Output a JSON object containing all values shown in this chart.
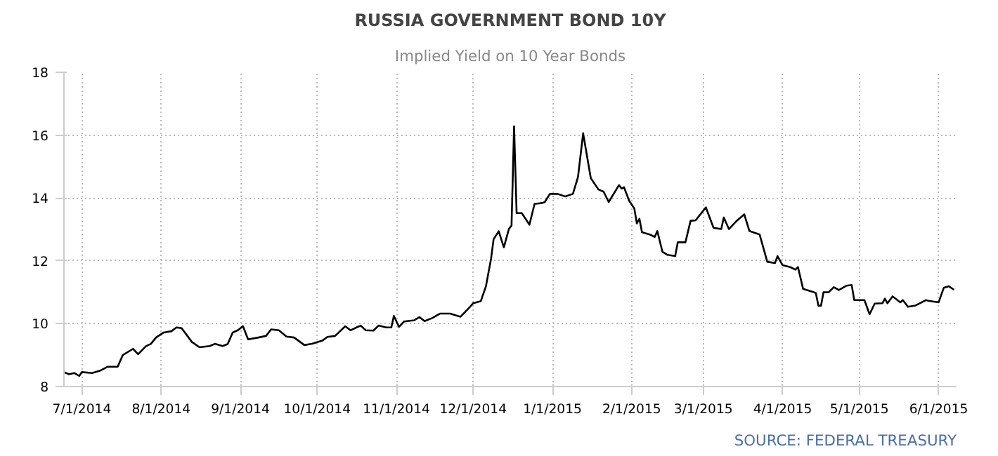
{
  "chart_data": {
    "type": "line",
    "title": "RUSSIA GOVERNMENT BOND 10Y",
    "subtitle": "Implied Yield on 10 Year Bonds",
    "annotations": [
      "SOURCE: FEDERAL TREASURY"
    ],
    "x": [
      "2014-06-24",
      "2014-06-26",
      "2014-06-28",
      "2014-06-30",
      "2014-07-01",
      "2014-07-05",
      "2014-07-08",
      "2014-07-11",
      "2014-07-15",
      "2014-07-17",
      "2014-07-21",
      "2014-07-23",
      "2014-07-26",
      "2014-07-28",
      "2014-07-30",
      "2014-08-02",
      "2014-08-05",
      "2014-08-07",
      "2014-08-09",
      "2014-08-13",
      "2014-08-16",
      "2014-08-20",
      "2014-08-22",
      "2014-08-25",
      "2014-08-27",
      "2014-08-29",
      "2014-08-31",
      "2014-09-02",
      "2014-09-04",
      "2014-09-08",
      "2014-09-11",
      "2014-09-13",
      "2014-09-16",
      "2014-09-19",
      "2014-09-22",
      "2014-09-26",
      "2014-09-29",
      "2014-10-03",
      "2014-10-05",
      "2014-10-08",
      "2014-10-12",
      "2014-10-14",
      "2014-10-18",
      "2014-10-20",
      "2014-10-23",
      "2014-10-25",
      "2014-10-28",
      "2014-10-30",
      "2014-10-31",
      "2014-11-02",
      "2014-11-04",
      "2014-11-08",
      "2014-11-10",
      "2014-11-12",
      "2014-11-15",
      "2014-11-18",
      "2014-11-22",
      "2014-11-26",
      "2014-11-29",
      "2014-12-01",
      "2014-12-04",
      "2014-12-06",
      "2014-12-08",
      "2014-12-09",
      "2014-12-11",
      "2014-12-13",
      "2014-12-15",
      "2014-12-16",
      "2014-12-17",
      "2014-12-18",
      "2014-12-20",
      "2014-12-23",
      "2014-12-25",
      "2014-12-28",
      "2014-12-29",
      "2014-12-31",
      "2015-01-03",
      "2015-01-06",
      "2015-01-09",
      "2015-01-11",
      "2015-01-13",
      "2015-01-16",
      "2015-01-19",
      "2015-01-21",
      "2015-01-23",
      "2015-01-27",
      "2015-01-28",
      "2015-01-29",
      "2015-01-31",
      "2015-02-02",
      "2015-02-03",
      "2015-02-04",
      "2015-02-05",
      "2015-02-08",
      "2015-02-10",
      "2015-02-11",
      "2015-02-13",
      "2015-02-15",
      "2015-02-18",
      "2015-02-19",
      "2015-02-22",
      "2015-02-24",
      "2015-02-26",
      "2015-03-02",
      "2015-03-03",
      "2015-03-05",
      "2015-03-08",
      "2015-03-09",
      "2015-03-11",
      "2015-03-14",
      "2015-03-17",
      "2015-03-19",
      "2015-03-23",
      "2015-03-26",
      "2015-03-29",
      "2015-03-30",
      "2015-04-01",
      "2015-04-04",
      "2015-04-06",
      "2015-04-07",
      "2015-04-09",
      "2015-04-13",
      "2015-04-14",
      "2015-04-15",
      "2015-04-16",
      "2015-04-17",
      "2015-04-19",
      "2015-04-21",
      "2015-04-23",
      "2015-04-26",
      "2015-04-28",
      "2015-04-29",
      "2015-05-03",
      "2015-05-05",
      "2015-05-07",
      "2015-05-10",
      "2015-05-11",
      "2015-05-12",
      "2015-05-14",
      "2015-05-17",
      "2015-05-18",
      "2015-05-20",
      "2015-05-23",
      "2015-05-27",
      "2015-05-28",
      "2015-06-01",
      "2015-06-03",
      "2015-06-05",
      "2015-06-07"
    ],
    "series": [
      {
        "color": "#000000",
        "values": [
          8.46,
          8.39,
          8.43,
          8.34,
          8.46,
          8.43,
          8.5,
          8.63,
          8.63,
          9.0,
          9.2,
          9.03,
          9.28,
          9.36,
          9.56,
          9.72,
          9.76,
          9.88,
          9.86,
          9.42,
          9.25,
          9.29,
          9.36,
          9.29,
          9.35,
          9.72,
          9.79,
          9.92,
          9.5,
          9.56,
          9.61,
          9.82,
          9.79,
          9.59,
          9.56,
          9.32,
          9.36,
          9.46,
          9.58,
          9.61,
          9.92,
          9.79,
          9.94,
          9.79,
          9.78,
          9.94,
          9.88,
          9.88,
          10.25,
          9.9,
          10.07,
          10.11,
          10.21,
          10.08,
          10.18,
          10.32,
          10.32,
          10.22,
          10.47,
          10.65,
          10.72,
          11.19,
          12.07,
          12.69,
          12.94,
          12.43,
          13.02,
          13.12,
          16.28,
          13.52,
          13.52,
          13.15,
          13.81,
          13.84,
          13.87,
          14.13,
          14.13,
          14.05,
          14.13,
          14.67,
          16.06,
          14.63,
          14.27,
          14.2,
          13.87,
          14.41,
          14.3,
          14.34,
          13.91,
          13.67,
          13.19,
          13.34,
          12.91,
          12.84,
          12.76,
          12.95,
          12.29,
          12.19,
          12.15,
          12.59,
          12.59,
          13.27,
          13.29,
          13.7,
          13.48,
          13.05,
          13.01,
          13.38,
          13.01,
          13.27,
          13.48,
          12.95,
          12.84,
          11.97,
          11.93,
          12.15,
          11.86,
          11.8,
          11.72,
          11.8,
          11.11,
          11.01,
          10.97,
          10.57,
          10.57,
          11.0,
          11.0,
          11.16,
          11.07,
          11.21,
          11.23,
          10.75,
          10.75,
          10.3,
          10.64,
          10.65,
          10.8,
          10.65,
          10.87,
          10.68,
          10.75,
          10.54,
          10.58,
          10.75,
          10.73,
          10.68,
          11.14,
          11.19,
          11.08
        ]
      }
    ],
    "xlim": [
      "2014-06-24",
      "2015-06-08"
    ],
    "xticks": [
      {
        "value": "2014-07-01",
        "label": "7/1/2014"
      },
      {
        "value": "2014-08-01",
        "label": "8/1/2014"
      },
      {
        "value": "2014-09-01",
        "label": "9/1/2014"
      },
      {
        "value": "2014-10-01",
        "label": "10/1/2014"
      },
      {
        "value": "2014-11-01",
        "label": "11/1/2014"
      },
      {
        "value": "2014-12-01",
        "label": "12/1/2014"
      },
      {
        "value": "2015-01-01",
        "label": "1/1/2015"
      },
      {
        "value": "2015-02-01",
        "label": "2/1/2015"
      },
      {
        "value": "2015-03-01",
        "label": "3/1/2015"
      },
      {
        "value": "2015-04-01",
        "label": "4/1/2015"
      },
      {
        "value": "2015-05-01",
        "label": "5/1/2015"
      },
      {
        "value": "2015-06-01",
        "label": "6/1/2015"
      }
    ],
    "ylim": [
      8,
      18
    ],
    "yticks": [
      8,
      10,
      12,
      14,
      16,
      18
    ],
    "grid": true,
    "line_style": "solid"
  }
}
